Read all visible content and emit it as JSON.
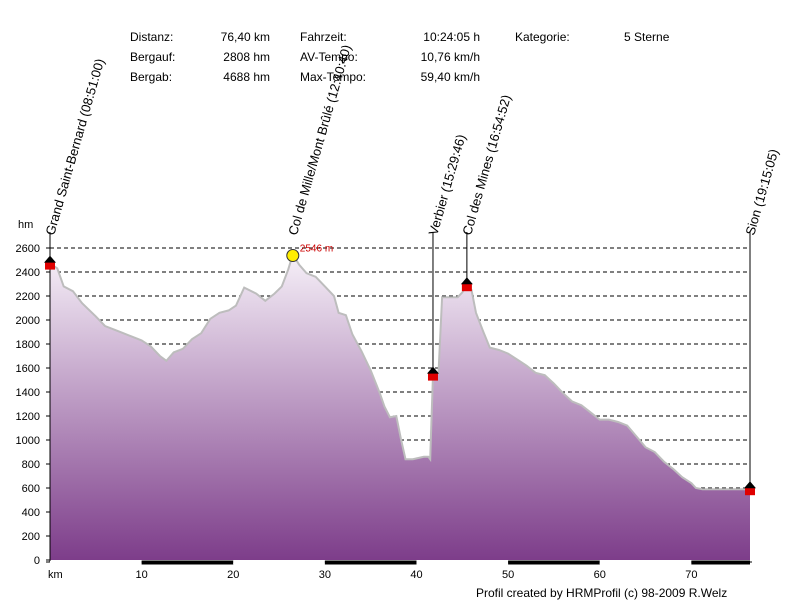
{
  "stats": {
    "distanz_label": "Distanz:",
    "distanz_value": "76,40 km",
    "bergauf_label": "Bergauf:",
    "bergauf_value": "2808 hm",
    "bergab_label": "Bergab:",
    "bergab_value": "4688 hm",
    "fahrzeit_label": "Fahrzeit:",
    "fahrzeit_value": "10:24:05 h",
    "avtempo_label": "AV-Tempo:",
    "avtempo_value": "10,76 km/h",
    "maxtempo_label": "Max-Tempo:",
    "maxtempo_value": "59,40 km/h",
    "kategorie_label": "Kategorie:",
    "kategorie_value": "5 Sterne"
  },
  "credit": "Profil created by HRMProfil (c) 98-2009 R.Welz",
  "colors": {
    "fill_top": "#f6f0f8",
    "fill_bottom": "#7d3d8a",
    "outline": "#bdbdbd",
    "marker_red": "#e00000",
    "peak_label": "#cc0000",
    "smiley": "#ffee00"
  },
  "chart_data": {
    "type": "area",
    "title": "",
    "xlabel": "km",
    "ylabel": "hm",
    "xlim": [
      0,
      76.4
    ],
    "ylim": [
      0,
      2600
    ],
    "grid": true,
    "x_ticks": [
      10,
      20,
      30,
      40,
      50,
      60,
      70
    ],
    "y_ticks": [
      0,
      200,
      400,
      600,
      800,
      1000,
      1200,
      1400,
      1600,
      1800,
      2000,
      2200,
      2400,
      2600
    ],
    "peak": {
      "x": 26.5,
      "y": 2546,
      "label": "2546 m"
    },
    "waypoints": [
      {
        "name": "Grand Saint-Bernard (08:51:00)",
        "x": 0,
        "y": 2470
      },
      {
        "name": "Col de Mille/Mont Brûlé (12:40:40)",
        "x": 26.5,
        "y": 2546
      },
      {
        "name": "Verbier (15:29:46)",
        "x": 41.8,
        "y": 1545
      },
      {
        "name": "Col des Mines (16:54:52)",
        "x": 45.5,
        "y": 2290
      },
      {
        "name": "Sion (19:15:05)",
        "x": 76.4,
        "y": 590
      }
    ],
    "series": [
      {
        "x": [
          0,
          0.8,
          1.5,
          2.5,
          3.5,
          5,
          6,
          7,
          8,
          9,
          10,
          11,
          12,
          12.7,
          13.5,
          14.5,
          15.5,
          16.5,
          17.5,
          18.5,
          19.5,
          20.3,
          21.2,
          22.5,
          23.5,
          24.5,
          25.3,
          26,
          26.5,
          27.2,
          28,
          29,
          30,
          31,
          31.5,
          32.3,
          33,
          34,
          35,
          36,
          36.5,
          37.1,
          37.8,
          38.3,
          38.8,
          39.6,
          40.2,
          40.8,
          41.3,
          41.5,
          41.6,
          41.8,
          42.4,
          42.8,
          43.5,
          44.5,
          45,
          45.5,
          46,
          46.5,
          47.3,
          48,
          49,
          50,
          51,
          52,
          53,
          54,
          55,
          56,
          57,
          58,
          59,
          60,
          61,
          62,
          63,
          64,
          65,
          66,
          67,
          68,
          69,
          70,
          70.5,
          71.2,
          72,
          73,
          74,
          75,
          76.4
        ],
        "y": [
          2470,
          2430,
          2280,
          2240,
          2140,
          2030,
          1950,
          1920,
          1890,
          1860,
          1830,
          1780,
          1700,
          1660,
          1730,
          1760,
          1840,
          1890,
          2010,
          2060,
          2080,
          2120,
          2270,
          2220,
          2160,
          2220,
          2280,
          2420,
          2546,
          2460,
          2390,
          2360,
          2280,
          2200,
          2060,
          2040,
          1880,
          1740,
          1580,
          1390,
          1280,
          1190,
          1200,
          1010,
          840,
          840,
          850,
          860,
          860,
          840,
          1100,
          1545,
          1560,
          2190,
          2190,
          2190,
          2230,
          2290,
          2250,
          2060,
          1900,
          1770,
          1750,
          1720,
          1670,
          1620,
          1560,
          1540,
          1470,
          1390,
          1320,
          1290,
          1230,
          1170,
          1170,
          1150,
          1120,
          1030,
          940,
          900,
          820,
          760,
          690,
          640,
          600,
          590,
          590,
          590,
          590,
          590,
          590
        ]
      }
    ]
  }
}
